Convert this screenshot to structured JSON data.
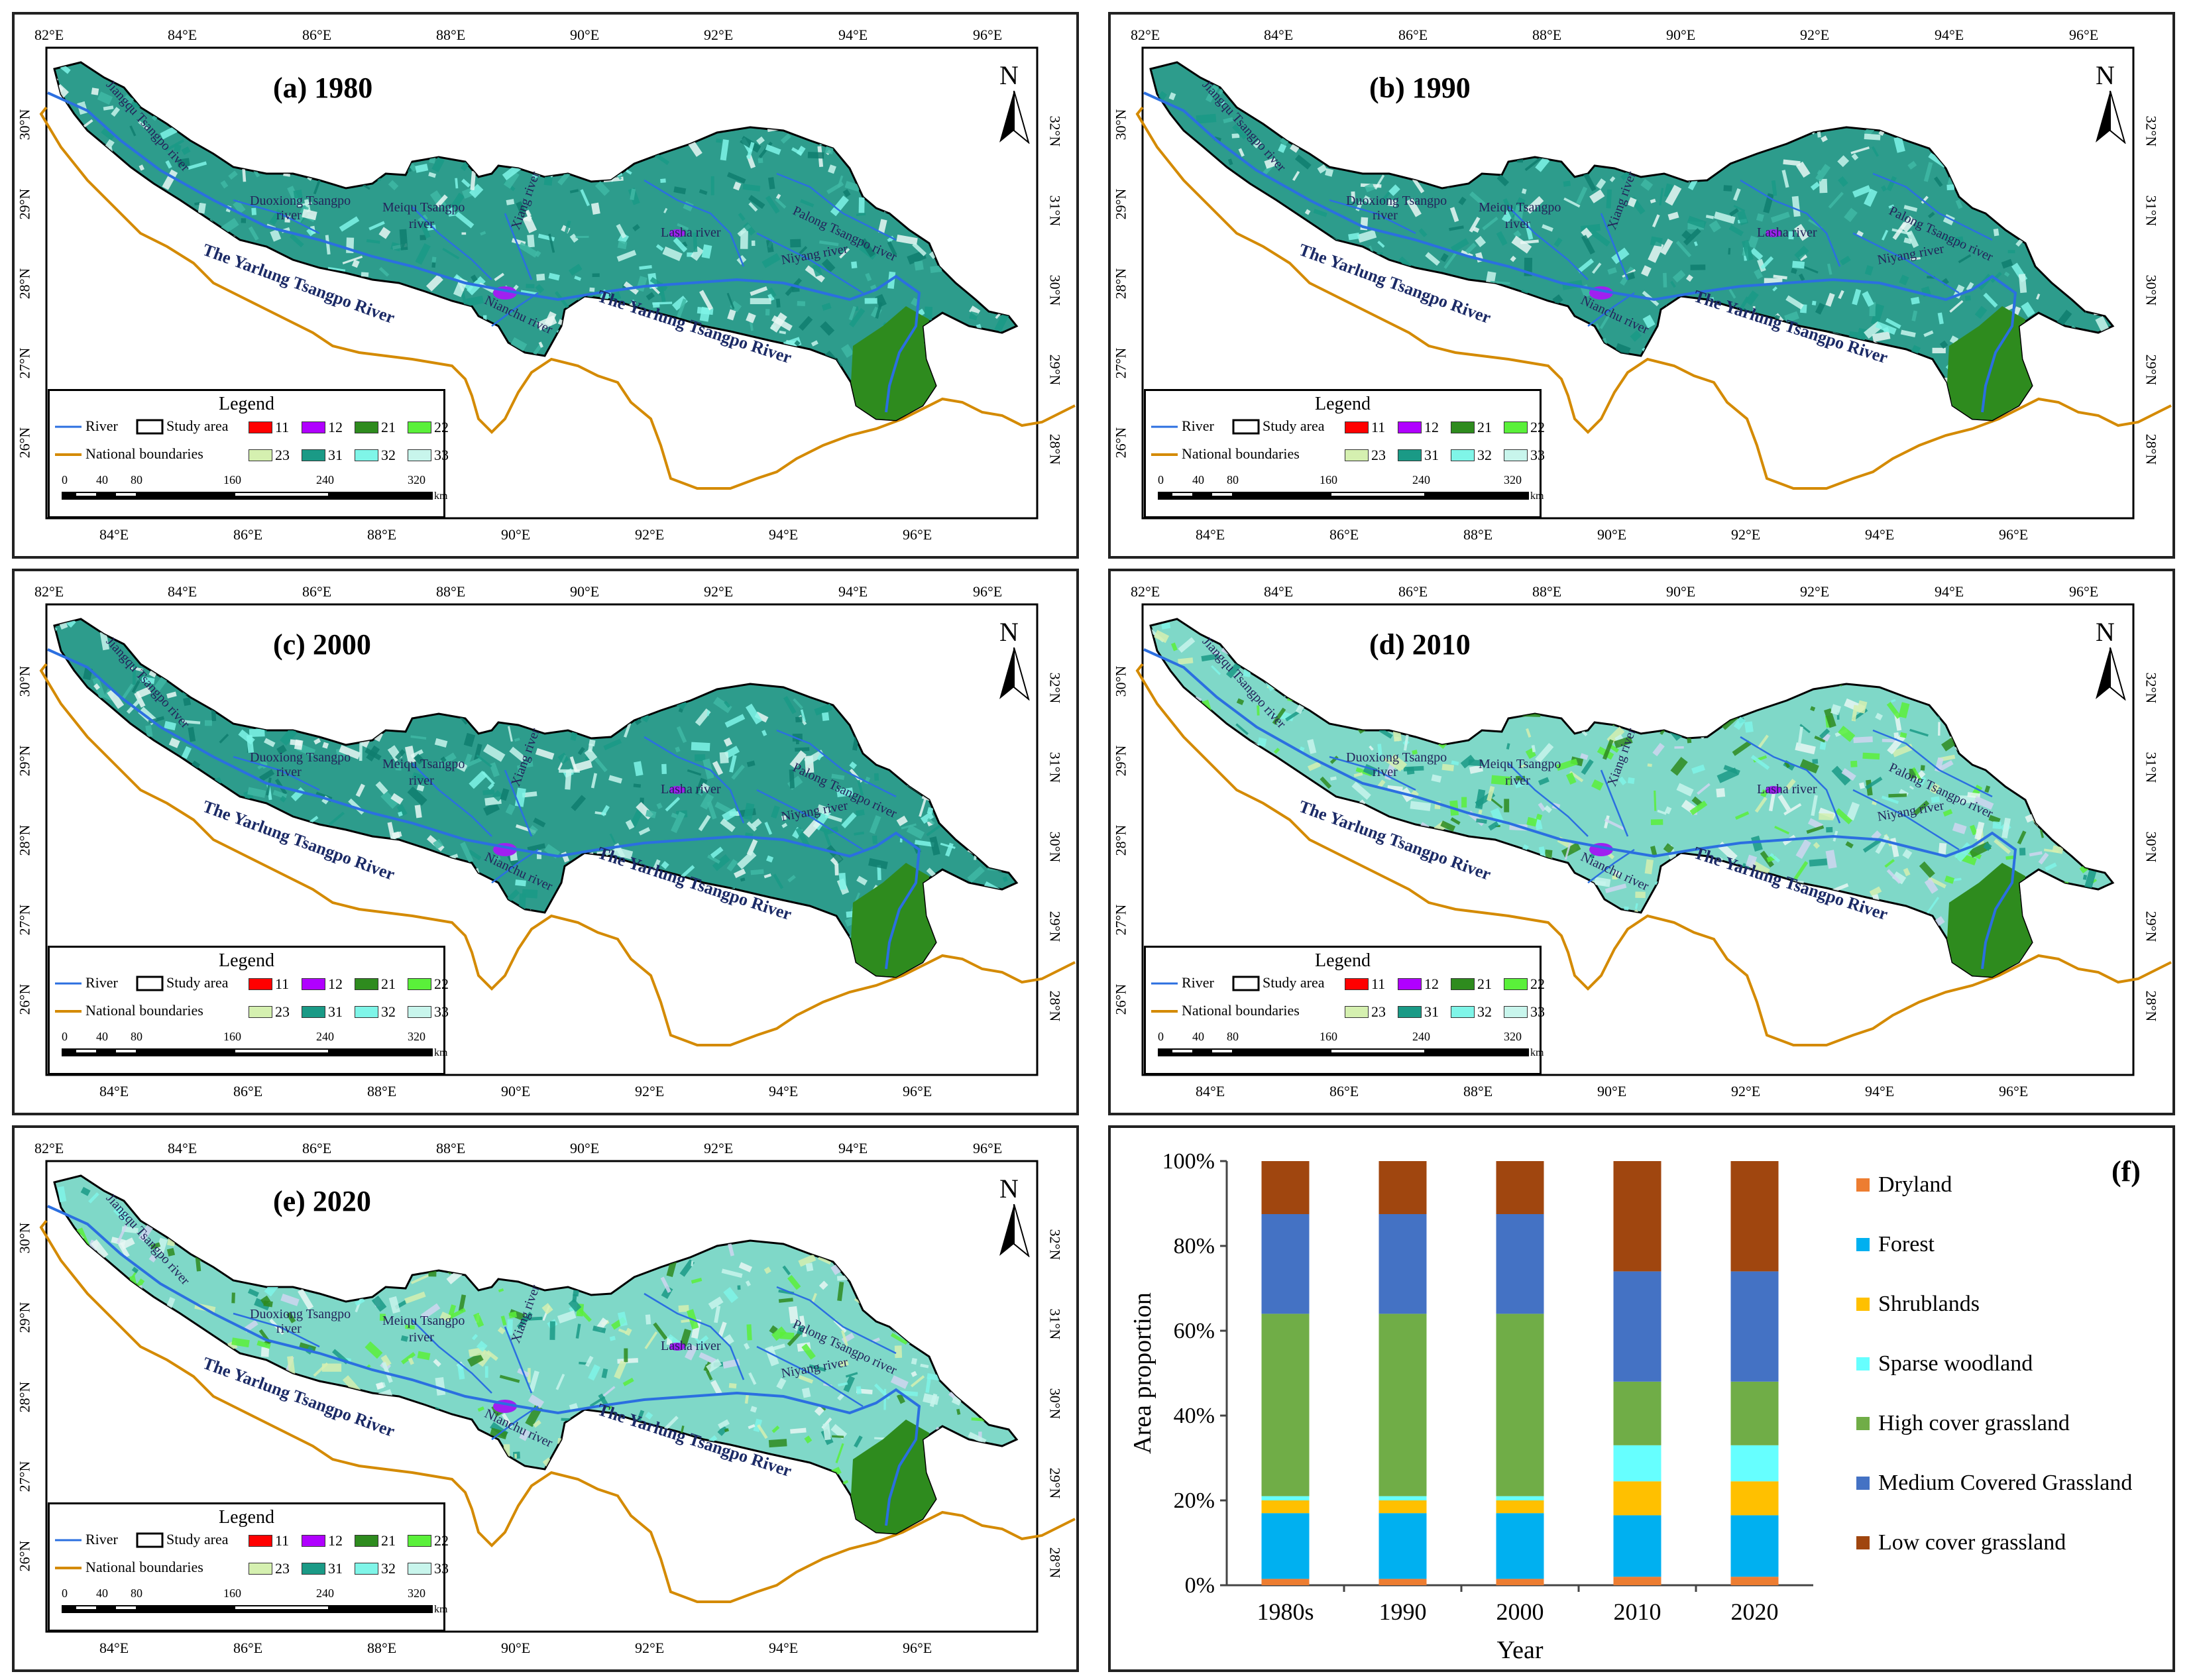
{
  "panels": [
    {
      "id": "a",
      "title": "(a) 1980",
      "year": 1980
    },
    {
      "id": "b",
      "title": "(b) 1990",
      "year": 1990
    },
    {
      "id": "c",
      "title": "(c) 2000",
      "year": 2000
    },
    {
      "id": "d",
      "title": "(d) 2010",
      "year": 2010
    },
    {
      "id": "e",
      "title": "(e) 2020",
      "year": 2020
    }
  ],
  "map": {
    "lon_ticks": [
      "82°E",
      "84°E",
      "86°E",
      "88°E",
      "90°E",
      "92°E",
      "94°E",
      "96°E"
    ],
    "lon_ticks_bottom": [
      "84°E",
      "86°E",
      "88°E",
      "90°E",
      "92°E",
      "94°E",
      "96°E"
    ],
    "lat_ticks_left": [
      "30°N",
      "29°N",
      "28°N",
      "27°N",
      "26°N"
    ],
    "lat_ticks_right": [
      "32°N",
      "31°N",
      "30°N",
      "29°N",
      "28°N"
    ],
    "north": "N",
    "labels": {
      "jiangqu": "Jiangqu Tsangpo river",
      "duoxiong": "Duoxiong Tsangpo",
      "duoxiong2": "river",
      "meiqu": "Meiqu Tsangpo",
      "meiqu2": "river",
      "xiang": "Xiang river",
      "nianchu": "Nianchu river",
      "lasha": "Lasha river",
      "palong": "Palong Tsangpo river",
      "niyang": "Niyang river",
      "yarlung": "The Yarlung Tsangpo River"
    },
    "colors": {
      "map_base": "#2d9c8c",
      "map_light": "#6fd6c4",
      "map_white": "#f2fbf8",
      "forest": "#2e8b1e",
      "river": "#2b6fe0",
      "boundary": "#d48a00",
      "purple": "#a020f0"
    }
  },
  "legend": {
    "title": "Legend",
    "river": "River",
    "study_area": "Study area",
    "national": "National boundaries",
    "classes": [
      {
        "code": "11",
        "color": "#ff0000"
      },
      {
        "code": "12",
        "color": "#b000ff"
      },
      {
        "code": "21",
        "color": "#2e8b1e"
      },
      {
        "code": "22",
        "color": "#5af03a"
      },
      {
        "code": "23",
        "color": "#d5f0b0"
      },
      {
        "code": "31",
        "color": "#1a9a86"
      },
      {
        "code": "32",
        "color": "#7ff5e8"
      },
      {
        "code": "33",
        "color": "#c8f5ec"
      }
    ],
    "scale_labels": [
      "0",
      "40",
      "80",
      "160",
      "240",
      "320"
    ],
    "scale_unit": "km"
  },
  "chart_data": {
    "type": "bar",
    "stacked": true,
    "panel_label": "(f)",
    "categories": [
      "1980s",
      "1990",
      "2000",
      "2010",
      "2020"
    ],
    "xlabel": "Year",
    "ylabel": "Area proportion",
    "ylim": [
      0,
      100
    ],
    "yticks": [
      "0%",
      "20%",
      "40%",
      "60%",
      "80%",
      "100%"
    ],
    "series": [
      {
        "name": "Dryland",
        "color": "#ed7d31",
        "values": [
          1.5,
          1.5,
          1.5,
          2,
          2
        ]
      },
      {
        "name": "Forest",
        "color": "#00b0f0",
        "values": [
          15.5,
          15.5,
          15.5,
          14.5,
          14.5
        ]
      },
      {
        "name": "Shrublands",
        "color": "#ffc000",
        "values": [
          3,
          3,
          3,
          8,
          8
        ]
      },
      {
        "name": "Sparse woodland",
        "color": "#66ffff",
        "values": [
          1,
          1,
          1,
          8.5,
          8.5
        ]
      },
      {
        "name": "High cover grassland",
        "color": "#70ad47",
        "values": [
          43,
          43,
          43,
          15,
          15
        ]
      },
      {
        "name": "Medium Covered Grassland",
        "color": "#4472c4",
        "values": [
          23.5,
          23.5,
          23.5,
          26,
          26
        ]
      },
      {
        "name": "Low cover grassland",
        "color": "#a0460f",
        "values": [
          12.5,
          12.5,
          12.5,
          26,
          26
        ]
      }
    ]
  }
}
